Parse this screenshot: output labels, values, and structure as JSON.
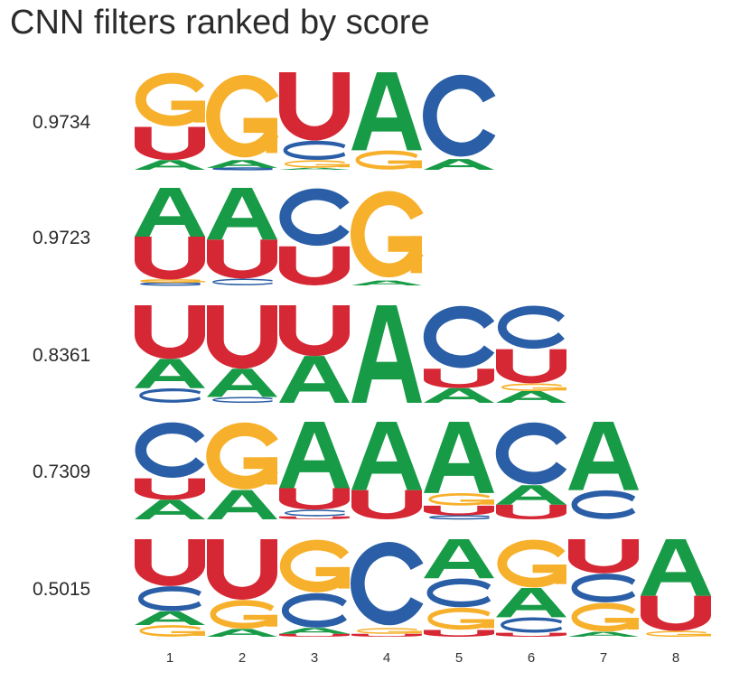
{
  "title": "CNN filters ranked by score",
  "chart_data": {
    "type": "sequence-logo",
    "title": "CNN filters ranked by score",
    "positions": [
      "1",
      "2",
      "3",
      "4",
      "5",
      "6",
      "7",
      "8"
    ],
    "ymax": 1.0,
    "colors": {
      "A": "#189b47",
      "C": "#2a5ea6",
      "G": "#f7b02b",
      "U": "#d62734"
    },
    "rows": [
      {
        "score": "0.9734",
        "columns": [
          [
            [
              "A",
              0.1
            ],
            [
              "U",
              0.34
            ],
            [
              "G",
              0.56
            ]
          ],
          [
            [
              "C",
              0.02
            ],
            [
              "A",
              0.08
            ],
            [
              "G",
              0.9
            ]
          ],
          [
            [
              "A",
              0.02
            ],
            [
              "G",
              0.08
            ],
            [
              "C",
              0.2
            ],
            [
              "U",
              0.7
            ]
          ],
          [
            [
              "G",
              0.2
            ],
            [
              "A",
              0.8
            ]
          ],
          [
            [
              "A",
              0.11
            ],
            [
              "C",
              0.89
            ]
          ]
        ]
      },
      {
        "score": "0.9723",
        "columns": [
          [
            [
              "C",
              0.03
            ],
            [
              "G",
              0.03
            ],
            [
              "U",
              0.44
            ],
            [
              "A",
              0.5
            ]
          ],
          [
            [
              "C",
              0.07
            ],
            [
              "U",
              0.4
            ],
            [
              "A",
              0.53
            ]
          ],
          [
            [
              "U",
              0.4
            ],
            [
              "C",
              0.6
            ]
          ],
          [
            [
              "A",
              0.05
            ],
            [
              "G",
              0.95
            ]
          ]
        ]
      },
      {
        "score": "0.8361",
        "columns": [
          [
            [
              "C",
              0.15
            ],
            [
              "A",
              0.3
            ],
            [
              "U",
              0.55
            ]
          ],
          [
            [
              "C",
              0.06
            ],
            [
              "A",
              0.29
            ],
            [
              "U",
              0.65
            ]
          ],
          [
            [
              "A",
              0.48
            ],
            [
              "U",
              0.52
            ]
          ],
          [
            [
              "A",
              1.0
            ]
          ],
          [
            [
              "A",
              0.15
            ],
            [
              "U",
              0.2
            ],
            [
              "C",
              0.65
            ]
          ],
          [
            [
              "A",
              0.12
            ],
            [
              "G",
              0.08
            ],
            [
              "U",
              0.35
            ],
            [
              "C",
              0.45
            ]
          ]
        ]
      },
      {
        "score": "0.7309",
        "columns": [
          [
            [
              "A",
              0.2
            ],
            [
              "U",
              0.22
            ],
            [
              "C",
              0.58
            ]
          ],
          [
            [
              "A",
              0.3
            ],
            [
              "G",
              0.7
            ]
          ],
          [
            [
              "U",
              0.03
            ],
            [
              "C",
              0.07
            ],
            [
              "U",
              0.22
            ],
            [
              "A",
              0.68
            ]
          ],
          [
            [
              "U",
              0.3
            ],
            [
              "A",
              0.7
            ]
          ],
          [
            [
              "C",
              0.04
            ],
            [
              "U",
              0.1
            ],
            [
              "G",
              0.13
            ],
            [
              "A",
              0.73
            ]
          ],
          [
            [
              "U",
              0.15
            ],
            [
              "A",
              0.2
            ],
            [
              "C",
              0.65
            ]
          ],
          [
            [
              "C",
              0.3
            ],
            [
              "A",
              0.7
            ]
          ]
        ]
      },
      {
        "score": "0.5015",
        "columns": [
          [
            [
              "G",
              0.12
            ],
            [
              "A",
              0.14
            ],
            [
              "C",
              0.26
            ],
            [
              "U",
              0.48
            ]
          ],
          [
            [
              "A",
              0.08
            ],
            [
              "G",
              0.3
            ],
            [
              "U",
              0.62
            ]
          ],
          [
            [
              "U",
              0.03
            ],
            [
              "A",
              0.06
            ],
            [
              "C",
              0.36
            ],
            [
              "G",
              0.55
            ]
          ],
          [
            [
              "U",
              0.03
            ],
            [
              "G",
              0.06
            ],
            [
              "C",
              0.91
            ]
          ],
          [
            [
              "U",
              0.07
            ],
            [
              "G",
              0.23
            ],
            [
              "C",
              0.3
            ],
            [
              "A",
              0.4
            ]
          ],
          [
            [
              "U",
              0.04
            ],
            [
              "C",
              0.16
            ],
            [
              "A",
              0.3
            ],
            [
              "G",
              0.5
            ]
          ],
          [
            [
              "A",
              0.05
            ],
            [
              "G",
              0.3
            ],
            [
              "C",
              0.3
            ],
            [
              "U",
              0.35
            ]
          ],
          [
            [
              "G",
              0.06
            ],
            [
              "U",
              0.36
            ],
            [
              "A",
              0.58
            ]
          ]
        ]
      }
    ]
  }
}
